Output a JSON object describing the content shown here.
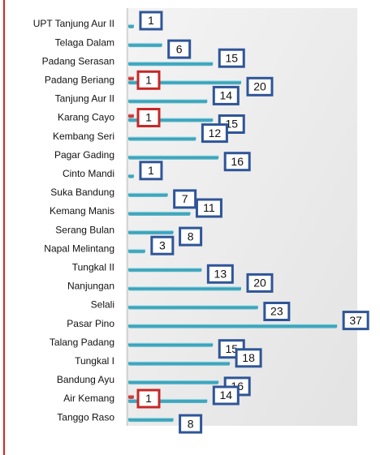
{
  "chart_data": {
    "type": "bar",
    "orientation": "horizontal",
    "categories": [
      "UPT Tanjung Aur II",
      "Telaga Dalam",
      "Padang Serasan",
      "Padang Beriang",
      "Tanjung Aur II",
      "Karang Cayo",
      "Kembang Seri",
      "Pagar Gading",
      "Cinto Mandi",
      "Suka Bandung",
      "Kemang Manis",
      "Serang Bulan",
      "Napal Melintang",
      "Tungkal II",
      "Nanjungan",
      "Selali",
      "Pasar Pino",
      "Talang Padang",
      "Tungkal I",
      "Bandung Ayu",
      "Air Kemang",
      "Tanggo Raso"
    ],
    "series": [
      {
        "color": "#2a9fb8",
        "values": [
          1,
          6,
          15,
          20,
          14,
          15,
          12,
          16,
          1,
          7,
          11,
          8,
          3,
          13,
          20,
          23,
          37,
          15,
          18,
          16,
          14,
          8
        ]
      },
      {
        "color": "#c62828",
        "values": [
          null,
          null,
          null,
          1,
          null,
          1,
          null,
          null,
          null,
          null,
          null,
          null,
          null,
          null,
          null,
          null,
          null,
          null,
          null,
          null,
          1,
          null
        ]
      }
    ]
  }
}
